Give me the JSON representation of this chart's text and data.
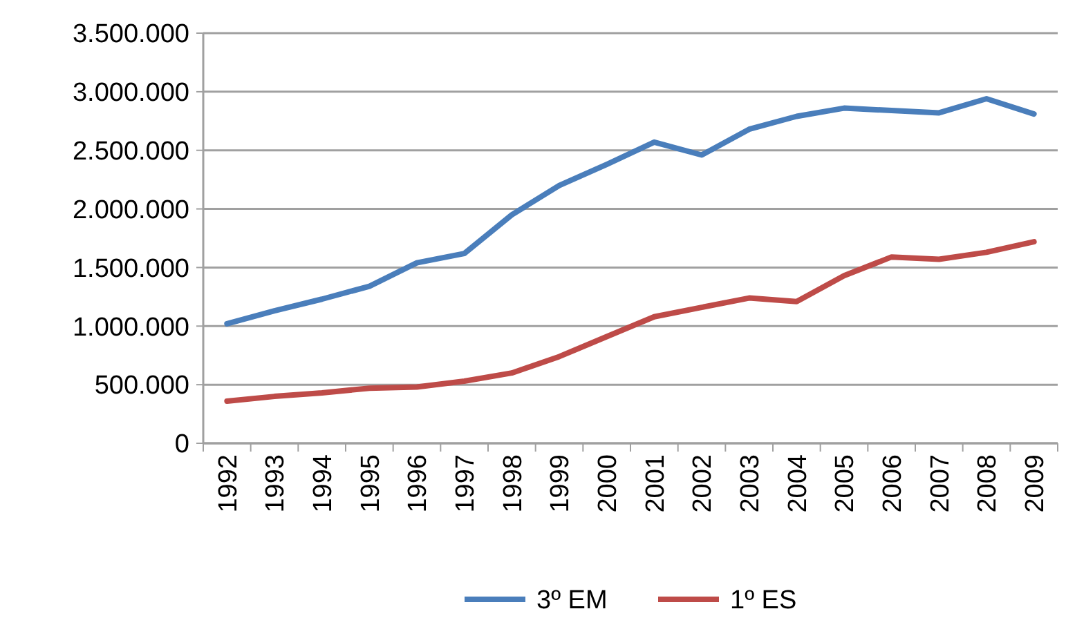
{
  "chart_data": {
    "type": "line",
    "categories": [
      "1992",
      "1993",
      "1994",
      "1995",
      "1996",
      "1997",
      "1998",
      "1999",
      "2000",
      "2001",
      "2002",
      "2003",
      "2004",
      "2005",
      "2006",
      "2007",
      "2008",
      "2009"
    ],
    "series": [
      {
        "name": "3º EM",
        "color": "#4a7ebb",
        "values": [
          1020000,
          1130000,
          1230000,
          1340000,
          1540000,
          1620000,
          1950000,
          2200000,
          2380000,
          2570000,
          2460000,
          2680000,
          2790000,
          2860000,
          2840000,
          2820000,
          2940000,
          2810000
        ]
      },
      {
        "name": "1º ES",
        "color": "#be4b48",
        "values": [
          360000,
          400000,
          430000,
          470000,
          480000,
          530000,
          600000,
          740000,
          910000,
          1080000,
          1160000,
          1240000,
          1210000,
          1430000,
          1590000,
          1570000,
          1630000,
          1720000
        ]
      }
    ],
    "ylim": [
      0,
      3500000
    ],
    "yticks": [
      0,
      {
        "value": 500000,
        "label": "500.000"
      },
      {
        "value": 1000000,
        "label": "1.000.000"
      },
      {
        "value": 1500000,
        "label": "1.500.000"
      },
      {
        "value": 2000000,
        "label": "2.000.000"
      },
      {
        "value": 2500000,
        "label": "2.500.000"
      },
      {
        "value": 3000000,
        "label": "3.000.000"
      },
      {
        "value": 3500000,
        "label": "3.500.000"
      }
    ],
    "grid": "y",
    "legend": "bottom",
    "marker": "none",
    "line_style": "solid"
  }
}
